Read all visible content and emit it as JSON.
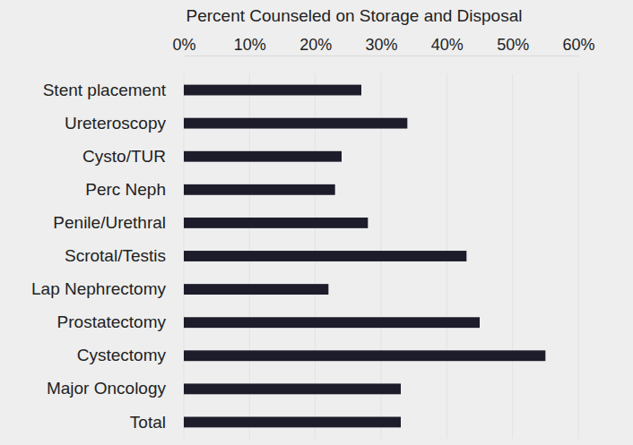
{
  "chart_data": {
    "type": "bar",
    "orientation": "horizontal",
    "title": "Percent Counseled on Storage and Disposal",
    "categories": [
      "Stent placement",
      "Ureteroscopy",
      "Cysto/TUR",
      "Perc Neph",
      "Penile/Urethral",
      "Scrotal/Testis",
      "Lap Nephrectomy",
      "Prostatectomy",
      "Cystectomy",
      "Major Oncology",
      "Total"
    ],
    "values": [
      27,
      34,
      24,
      23,
      28,
      43,
      22,
      45,
      55,
      33,
      33
    ],
    "color": "#1c1c2b",
    "xlim": [
      0,
      60
    ],
    "xticks": [
      {
        "value": 0,
        "label": "0%"
      },
      {
        "value": 10,
        "label": "10%"
      },
      {
        "value": 20,
        "label": "20%"
      },
      {
        "value": 30,
        "label": "30%"
      },
      {
        "value": 40,
        "label": "40%"
      },
      {
        "value": 50,
        "label": "50%"
      },
      {
        "value": 60,
        "label": "60%"
      }
    ],
    "grid": true
  }
}
